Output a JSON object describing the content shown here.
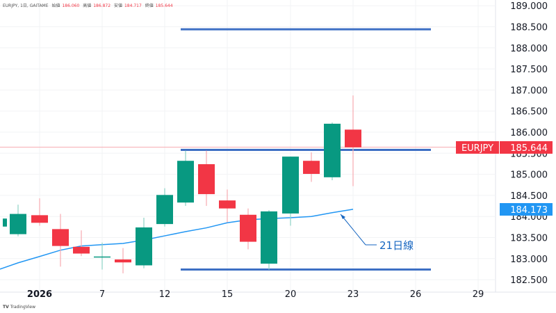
{
  "header": {
    "symbol": "EURJPY, 1日, GAITAME",
    "open_label": "始値",
    "open": "186.060",
    "high_label": "高値",
    "high": "186.872",
    "low_label": "安値",
    "low": "184.717",
    "close_label": "終値",
    "close": "185.644"
  },
  "watermark": {
    "logo": "TV",
    "text": "TradingView"
  },
  "price_badges": {
    "symbol_label": "EURJPY",
    "last_price": "185.644",
    "last_price_color": "#f23645",
    "ma_value": "184.173",
    "ma_color": "#2196f3"
  },
  "annotation": {
    "text": "21日線",
    "color": "#1565c0"
  },
  "colors": {
    "up": "#089981",
    "down": "#f23645",
    "level_line": "#3d6fc4",
    "ma_line": "#2196f3",
    "grid": "#f2f3f5"
  },
  "chart_data": {
    "type": "candlestick",
    "title": "EURJPY, 1日, GAITAME",
    "xlabel": "",
    "ylabel": "",
    "y_ticks": [
      "189.000",
      "188.500",
      "188.000",
      "187.500",
      "187.000",
      "186.500",
      "186.000",
      "185.500",
      "185.000",
      "184.500",
      "184.000",
      "183.500",
      "183.000",
      "182.500"
    ],
    "x_ticks": [
      "2026",
      "7",
      "12",
      "15",
      "20",
      "23",
      "26",
      "29"
    ],
    "ylim": [
      182.3,
      189.1
    ],
    "grid": true,
    "candles": [
      {
        "o": 183.76,
        "h": 183.76,
        "l": 183.95,
        "c": 183.95
      },
      {
        "o": 183.58,
        "h": 184.28,
        "l": 183.53,
        "c": 184.06
      },
      {
        "o": 184.03,
        "h": 184.43,
        "l": 183.78,
        "c": 183.85
      },
      {
        "o": 183.7,
        "h": 184.06,
        "l": 182.81,
        "c": 183.3
      },
      {
        "o": 183.28,
        "h": 183.67,
        "l": 183.06,
        "c": 183.12
      },
      {
        "o": 183.05,
        "h": 183.38,
        "l": 182.74,
        "c": 183.05
      },
      {
        "o": 182.98,
        "h": 183.25,
        "l": 182.65,
        "c": 182.91
      },
      {
        "o": 182.84,
        "h": 183.97,
        "l": 182.77,
        "c": 183.74
      },
      {
        "o": 183.82,
        "h": 184.67,
        "l": 183.76,
        "c": 184.51
      },
      {
        "o": 184.33,
        "h": 185.56,
        "l": 184.25,
        "c": 185.32
      },
      {
        "o": 185.24,
        "h": 185.56,
        "l": 184.25,
        "c": 184.53
      },
      {
        "o": 184.38,
        "h": 184.64,
        "l": 183.86,
        "c": 184.19
      },
      {
        "o": 184.04,
        "h": 184.19,
        "l": 183.22,
        "c": 183.4
      },
      {
        "o": 182.88,
        "h": 184.15,
        "l": 182.74,
        "c": 184.12
      },
      {
        "o": 184.07,
        "h": 185.42,
        "l": 183.78,
        "c": 185.42
      },
      {
        "o": 185.32,
        "h": 185.52,
        "l": 184.82,
        "c": 185.01
      },
      {
        "o": 184.93,
        "h": 186.23,
        "l": 184.86,
        "c": 186.2
      },
      {
        "o": 186.06,
        "h": 186.87,
        "l": 184.72,
        "c": 185.64
      }
    ],
    "series": [
      {
        "name": "21日線",
        "type": "line",
        "values": [
          182.75,
          182.9,
          183.05,
          183.2,
          183.3,
          183.33,
          183.36,
          183.44,
          183.54,
          183.64,
          183.73,
          183.85,
          183.92,
          183.95,
          183.97,
          184.0,
          184.09,
          184.17
        ]
      }
    ],
    "horizontal_lines": [
      188.44,
      185.58,
      182.74
    ],
    "last_price": 185.644,
    "ma_last": 184.173
  }
}
